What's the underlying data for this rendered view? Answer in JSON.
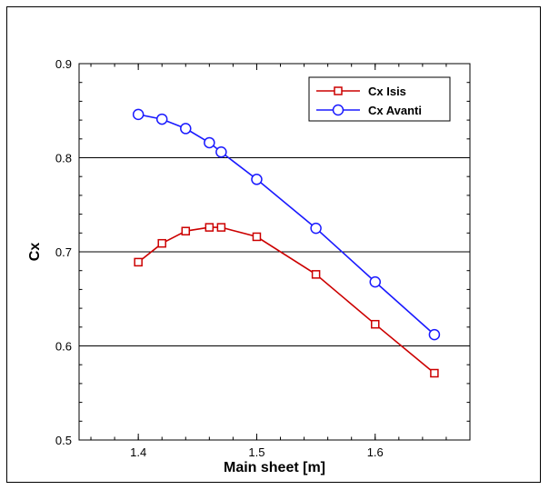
{
  "chart_data": {
    "type": "line",
    "xlabel": "Main sheet [m]",
    "ylabel": "Cx",
    "xlim": [
      1.35,
      1.68
    ],
    "ylim": [
      0.5,
      0.9
    ],
    "xticks": [
      "1.4",
      "1.5",
      "1.6"
    ],
    "yticks": [
      "0.5",
      "0.6",
      "0.7",
      "0.8",
      "0.9"
    ],
    "grid": "horizontal",
    "legend_position": "top-right",
    "series": [
      {
        "name": "Cx Isis",
        "color": "#cc0000",
        "marker": "square",
        "x": [
          1.4,
          1.42,
          1.44,
          1.46,
          1.47,
          1.5,
          1.55,
          1.6,
          1.65
        ],
        "y": [
          0.689,
          0.709,
          0.722,
          0.726,
          0.726,
          0.716,
          0.676,
          0.623,
          0.571
        ]
      },
      {
        "name": "Cx Avanti",
        "color": "#1a1aff",
        "marker": "circle",
        "x": [
          1.4,
          1.42,
          1.44,
          1.46,
          1.47,
          1.5,
          1.55,
          1.6,
          1.65
        ],
        "y": [
          0.846,
          0.841,
          0.831,
          0.816,
          0.806,
          0.777,
          0.725,
          0.668,
          0.612
        ]
      }
    ]
  }
}
